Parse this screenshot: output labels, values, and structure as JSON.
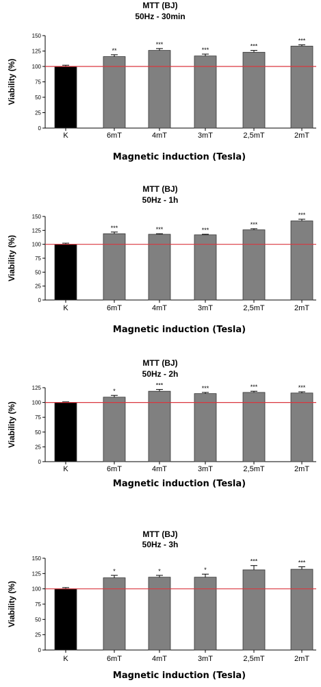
{
  "chart_data": [
    {
      "type": "bar",
      "title": "MTT (BJ)",
      "subtitle": "50Hz - 30min",
      "xlabel": "Magnetic induction (Tesla)",
      "ylabel": "Viability (%)",
      "ylim": [
        0,
        150
      ],
      "yticks": [
        "0",
        "25",
        "50",
        "75",
        "100",
        "125",
        "150"
      ],
      "categories": [
        "K",
        "6mT",
        "4mT",
        "3mT",
        "2,5mT",
        "2mT"
      ],
      "values": [
        100,
        116,
        126,
        117,
        123,
        133
      ],
      "errors": [
        2,
        3,
        3,
        3,
        3,
        2
      ],
      "significance": [
        "",
        "**",
        "***",
        "***",
        "***",
        "***"
      ],
      "reference_line": 100,
      "colors": [
        "#000000",
        "#808080",
        "#808080",
        "#808080",
        "#808080",
        "#808080"
      ]
    },
    {
      "type": "bar",
      "title": "MTT (BJ)",
      "subtitle": "50Hz - 1h",
      "xlabel": "Magnetic induction (Tesla)",
      "ylabel": "Viability (%)",
      "ylim": [
        0,
        150
      ],
      "yticks": [
        "0",
        "25",
        "50",
        "75",
        "100",
        "125",
        "150"
      ],
      "categories": [
        "K",
        "6mT",
        "4mT",
        "3mT",
        "2,5mT",
        "2mT"
      ],
      "values": [
        100,
        119,
        118,
        117,
        126,
        142
      ],
      "errors": [
        2,
        3,
        1,
        1,
        2,
        3
      ],
      "significance": [
        "",
        "***",
        "***",
        "***",
        "***",
        "***"
      ],
      "reference_line": 100,
      "colors": [
        "#000000",
        "#808080",
        "#808080",
        "#808080",
        "#808080",
        "#808080"
      ]
    },
    {
      "type": "bar",
      "title": "MTT (BJ)",
      "subtitle": "50Hz - 2h",
      "xlabel": "Magnetic induction (Tesla)",
      "ylabel": "Viability (%)",
      "ylim": [
        0,
        125
      ],
      "yticks": [
        "0",
        "25",
        "50",
        "75",
        "100",
        "125"
      ],
      "categories": [
        "K",
        "6mT",
        "4mT",
        "3mT",
        "2,5mT",
        "2mT"
      ],
      "values": [
        100,
        109,
        119,
        115,
        117,
        116
      ],
      "errors": [
        1,
        3,
        3,
        2,
        2,
        2
      ],
      "significance": [
        "",
        "*",
        "***",
        "***",
        "***",
        "***"
      ],
      "reference_line": 100,
      "colors": [
        "#000000",
        "#808080",
        "#808080",
        "#808080",
        "#808080",
        "#808080"
      ]
    },
    {
      "type": "bar",
      "title": "MTT (BJ)",
      "subtitle": "50Hz - 3h",
      "xlabel": "Magnetic induction (Tesla)",
      "ylabel": "Viability (%)",
      "ylim": [
        0,
        150
      ],
      "yticks": [
        "0",
        "25",
        "50",
        "75",
        "100",
        "125",
        "150"
      ],
      "categories": [
        "K",
        "6mT",
        "4mT",
        "3mT",
        "2,5mT",
        "2mT"
      ],
      "values": [
        100,
        118,
        119,
        119,
        131,
        132
      ],
      "errors": [
        2,
        4,
        3,
        5,
        7,
        4
      ],
      "significance": [
        "",
        "*",
        "*",
        "*",
        "***",
        "***"
      ],
      "reference_line": 100,
      "colors": [
        "#000000",
        "#808080",
        "#808080",
        "#808080",
        "#808080",
        "#808080"
      ]
    }
  ]
}
